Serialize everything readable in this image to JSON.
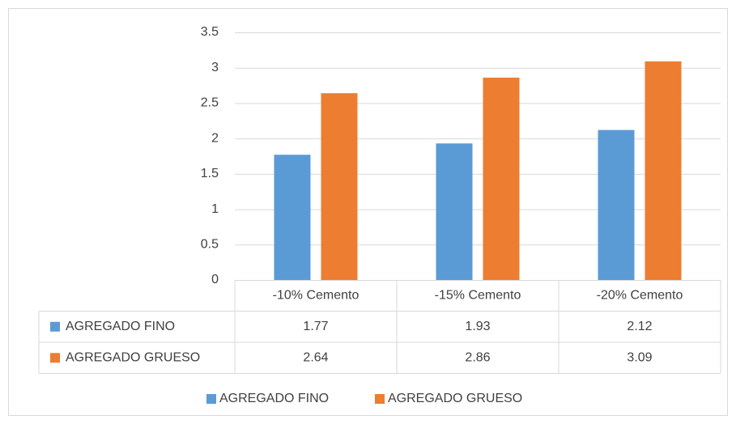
{
  "chart_data": {
    "type": "bar",
    "categories": [
      "-10% Cemento",
      "-15% Cemento",
      "-20% Cemento"
    ],
    "series": [
      {
        "name": "AGREGADO FINO",
        "color": "#5b9bd5",
        "values": [
          1.77,
          1.93,
          2.12
        ]
      },
      {
        "name": "AGREGADO GRUESO",
        "color": "#ed7d31",
        "values": [
          2.64,
          2.86,
          3.09
        ]
      }
    ],
    "ylim": [
      0,
      3.5
    ],
    "yticks": [
      0,
      0.5,
      1,
      1.5,
      2,
      2.5,
      3,
      3.5
    ],
    "grid": true,
    "legend": "bottom",
    "data_table": true
  }
}
